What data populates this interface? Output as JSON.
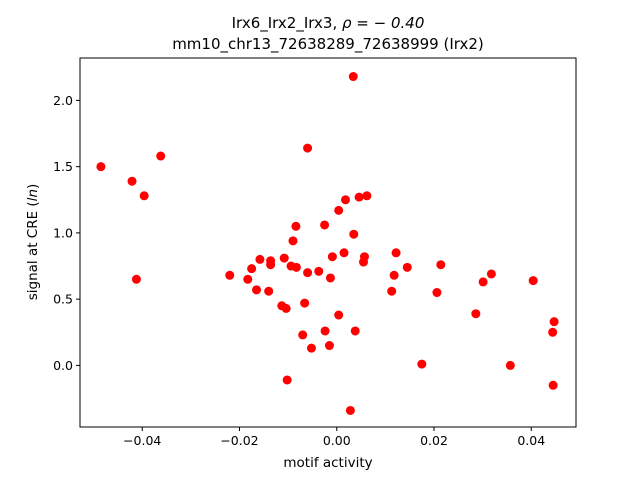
{
  "chart_data": {
    "type": "scatter",
    "title_line1": "Irx6_Irx2_Irx3, ",
    "title_rho": "ρ = − 0.40",
    "title_line2": "mm10_chr13_72638289_72638999 (Irx2)",
    "xlabel": "motif activity",
    "ylabel_prefix": "signal at CRE (",
    "ylabel_italic": "ln",
    "ylabel_suffix": ")",
    "xlim": [
      -0.0528,
      0.0492
    ],
    "ylim": [
      -0.465,
      2.32
    ],
    "xticks": [
      -0.04,
      -0.02,
      0.0,
      0.02,
      0.04
    ],
    "xtick_labels": [
      "−0.04",
      "−0.02",
      "0.00",
      "0.02",
      "0.04"
    ],
    "yticks": [
      0.0,
      0.5,
      1.0,
      1.5,
      2.0
    ],
    "ytick_labels": [
      "0.0",
      "0.5",
      "1.0",
      "1.5",
      "2.0"
    ],
    "marker_color": "#ff0000",
    "grid": false,
    "legend": "none",
    "points": [
      [
        -0.0485,
        1.5
      ],
      [
        -0.0421,
        1.39
      ],
      [
        -0.0396,
        1.28
      ],
      [
        -0.0362,
        1.58
      ],
      [
        -0.0412,
        0.65
      ],
      [
        -0.022,
        0.68
      ],
      [
        -0.0183,
        0.65
      ],
      [
        -0.0175,
        0.73
      ],
      [
        -0.0165,
        0.57
      ],
      [
        -0.0158,
        0.8
      ],
      [
        -0.014,
        0.56
      ],
      [
        -0.0136,
        0.76
      ],
      [
        -0.0136,
        0.79
      ],
      [
        -0.0113,
        0.45
      ],
      [
        -0.0108,
        0.81
      ],
      [
        -0.0104,
        0.43
      ],
      [
        -0.0094,
        0.75
      ],
      [
        -0.009,
        0.94
      ],
      [
        -0.0084,
        1.05
      ],
      [
        -0.0083,
        0.74
      ],
      [
        -0.0066,
        0.47
      ],
      [
        -0.006,
        0.7
      ],
      [
        -0.006,
        1.64
      ],
      [
        -0.0052,
        0.13
      ],
      [
        -0.0037,
        0.71
      ],
      [
        -0.0025,
        1.06
      ],
      [
        -0.0024,
        0.26
      ],
      [
        -0.0015,
        0.15
      ],
      [
        -0.0013,
        0.66
      ],
      [
        -0.0009,
        0.82
      ],
      [
        -0.007,
        0.23
      ],
      [
        0.0004,
        1.17
      ],
      [
        0.0004,
        0.38
      ],
      [
        0.0015,
        0.85
      ],
      [
        0.0018,
        1.25
      ],
      [
        0.0035,
        0.99
      ],
      [
        0.0038,
        0.26
      ],
      [
        0.0046,
        1.27
      ],
      [
        0.0055,
        0.78
      ],
      [
        0.0057,
        0.82
      ],
      [
        0.0062,
        1.28
      ],
      [
        0.0034,
        2.18
      ],
      [
        0.0028,
        -0.34
      ],
      [
        -0.0102,
        -0.11
      ],
      [
        0.0113,
        0.56
      ],
      [
        0.0118,
        0.68
      ],
      [
        0.0122,
        0.85
      ],
      [
        0.0145,
        0.74
      ],
      [
        0.0175,
        0.01
      ],
      [
        0.0206,
        0.55
      ],
      [
        0.0214,
        0.76
      ],
      [
        0.0286,
        0.39
      ],
      [
        0.0301,
        0.63
      ],
      [
        0.0318,
        0.69
      ],
      [
        0.0357,
        0.0
      ],
      [
        0.0404,
        0.64
      ],
      [
        0.0444,
        0.25
      ],
      [
        0.0447,
        0.33
      ],
      [
        0.0445,
        -0.15
      ]
    ]
  }
}
